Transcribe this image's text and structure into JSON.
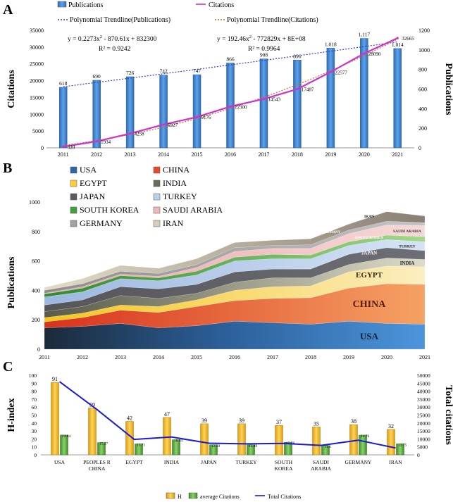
{
  "figure": {
    "panel_a_label": "A",
    "panel_b_label": "B",
    "panel_c_label": "C"
  },
  "colors": {
    "pub_bar": "#4a8fd6",
    "citations_line": "#cc33cc",
    "poly_pub": "#2f3fd1",
    "poly_cit": "#d2691e",
    "h_bar": "#f2b21a",
    "avg_bar": "#5aa63c",
    "total_line": "#1a1ad8"
  },
  "chart_data": [
    {
      "type": "bar",
      "panel": "A",
      "categories": [
        "2011",
        "2012",
        "2013",
        "2014",
        "2015",
        "2016",
        "2017",
        "2018",
        "2019",
        "2020",
        "2021"
      ],
      "series": [
        {
          "name": "Publications",
          "axis": "right",
          "values": [
            618,
            690,
            726,
            742,
            747,
            866,
            908,
            896,
            1018,
            1117,
            1014
          ]
        },
        {
          "name": "Citations",
          "axis": "left",
          "type": "line",
          "values": [
            320,
            1934,
            4258,
            6927,
            9176,
            12300,
            14543,
            17487,
            22577,
            28090,
            32665
          ]
        }
      ],
      "value_labels": {
        "publications": [
          "618",
          "690",
          "726",
          "742",
          "747",
          "866",
          "908",
          "896",
          "1,018",
          "1,117",
          "1,014"
        ],
        "citations": [
          "320",
          "1934",
          "4258",
          "6927",
          "9176",
          "12300",
          "14543",
          "17487",
          "22577",
          "28090",
          "32665"
        ]
      },
      "legend": [
        "Publications",
        "Citations",
        "Polynomial Trendline(Publications)",
        "Polynomial Trendline(Citations)"
      ],
      "equations": {
        "pub_eq": "y = 0.2273x",
        "pub_eq_rest": " - 870.61x + 832300",
        "pub_r2": "R² = 0.9242",
        "cit_eq": "y = 192.46x",
        "cit_eq_rest": " - 772829x + 8E+08",
        "cit_r2": "R² = 0.9964",
        "sup": "2"
      },
      "ylabel": "Citations",
      "y2label": "Publications",
      "ylim": [
        0,
        35000
      ],
      "y2lim": [
        0,
        1200
      ],
      "yticks": [
        "0",
        "5000",
        "10000",
        "15000",
        "20000",
        "25000",
        "30000",
        "35000"
      ],
      "y2ticks": [
        "0",
        "200",
        "400",
        "600",
        "800",
        "1000",
        "1200"
      ]
    },
    {
      "type": "area",
      "panel": "B",
      "stacked": true,
      "x": [
        "2011",
        "2012",
        "2013",
        "2014",
        "2015",
        "2016",
        "2017",
        "2018",
        "2019",
        "2020",
        "2021"
      ],
      "series": [
        {
          "name": "USA",
          "values": [
            145,
            155,
            175,
            145,
            160,
            190,
            180,
            170,
            190,
            175,
            170
          ]
        },
        {
          "name": "CHINA",
          "values": [
            40,
            60,
            90,
            105,
            130,
            140,
            165,
            180,
            225,
            270,
            270
          ]
        },
        {
          "name": "EGYPT",
          "values": [
            30,
            30,
            35,
            40,
            45,
            70,
            80,
            80,
            110,
            120,
            120
          ]
        },
        {
          "name": "INDIA",
          "values": [
            40,
            45,
            65,
            55,
            45,
            55,
            60,
            55,
            50,
            55,
            50
          ]
        },
        {
          "name": "JAPAN",
          "values": [
            45,
            45,
            60,
            65,
            60,
            70,
            60,
            60,
            70,
            70,
            60
          ]
        },
        {
          "name": "TURKEY",
          "values": [
            55,
            55,
            55,
            55,
            65,
            75,
            70,
            70,
            60,
            55,
            60
          ]
        },
        {
          "name": "SOUTH KOREA",
          "values": [
            20,
            25,
            20,
            20,
            25,
            25,
            30,
            25,
            25,
            30,
            35
          ]
        },
        {
          "name": "SAUDI ARABIA",
          "values": [
            5,
            10,
            10,
            10,
            25,
            40,
            40,
            45,
            55,
            70,
            75
          ]
        },
        {
          "name": "GERMANY",
          "values": [
            20,
            20,
            20,
            20,
            20,
            25,
            20,
            25,
            25,
            25,
            20
          ]
        },
        {
          "name": "IRAN",
          "values": [
            20,
            35,
            40,
            35,
            40,
            35,
            35,
            40,
            40,
            65,
            45
          ]
        }
      ],
      "ylabel": "Publications",
      "ylim": [
        0,
        1000
      ],
      "yticks": [
        "0",
        "200",
        "400",
        "600",
        "800",
        "1000"
      ],
      "area_labels": {
        "USA": "USA",
        "CHINA": "CHINA",
        "EGYPT": "EGYPT",
        "INDIA": "INDIA",
        "JAPAN": "JAPAN",
        "TURKEY": "TURKEY",
        "SOUTH KOREA": "SOUTH KOREA",
        "SAUDI ARABIA": "SAUDI ARABIA",
        "GERMANY": "GERMANY",
        "IRAN": "IRAN"
      }
    },
    {
      "type": "bar",
      "panel": "C",
      "categories": [
        "USA",
        "PEOPLES R|CHINA",
        "EGYPT",
        "INDIA",
        "JAPAN",
        "TURKEY",
        "SOUTH|KOREA",
        "SAUDI|ARABIA",
        "GERMANY",
        "IRAN"
      ],
      "series": [
        {
          "name": "H",
          "axis": "left",
          "values": [
            91,
            59,
            42,
            47,
            39,
            39,
            37,
            35,
            38,
            32
          ]
        },
        {
          "name": "average Citations",
          "axis": "left",
          "values": [
            24.84,
            15.27,
            13.71,
            18.93,
            12.59,
            12.49,
            15.78,
            11.6,
            24.76,
            13.75
          ]
        },
        {
          "name": "Total Citations",
          "axis": "right",
          "type": "line",
          "values": [
            46000,
            28500,
            9700,
            11200,
            7300,
            6900,
            7200,
            5900,
            9200,
            4300
          ]
        }
      ],
      "value_labels": {
        "h": [
          "91",
          "59",
          "42",
          "47",
          "39",
          "39",
          "37",
          "35",
          "38",
          "32"
        ],
        "avg": [
          "24.84",
          "15.27",
          "13.71",
          "18.93",
          "12.59",
          "12.49",
          "15.78",
          "11.6",
          "24.76",
          "13.75"
        ]
      },
      "legend": [
        "H",
        "average Citations",
        "Total Citations"
      ],
      "ylabel": "H-index",
      "y2label": "Total citations",
      "ylim": [
        0,
        100
      ],
      "y2lim": [
        0,
        50000
      ],
      "yticks": [
        "0",
        "10",
        "20",
        "30",
        "40",
        "50",
        "60",
        "70",
        "80",
        "90",
        "100"
      ],
      "y2ticks": [
        "0",
        "5000",
        "10000",
        "15000",
        "20000",
        "25000",
        "30000",
        "35000",
        "40000",
        "45000",
        "50000"
      ]
    }
  ]
}
